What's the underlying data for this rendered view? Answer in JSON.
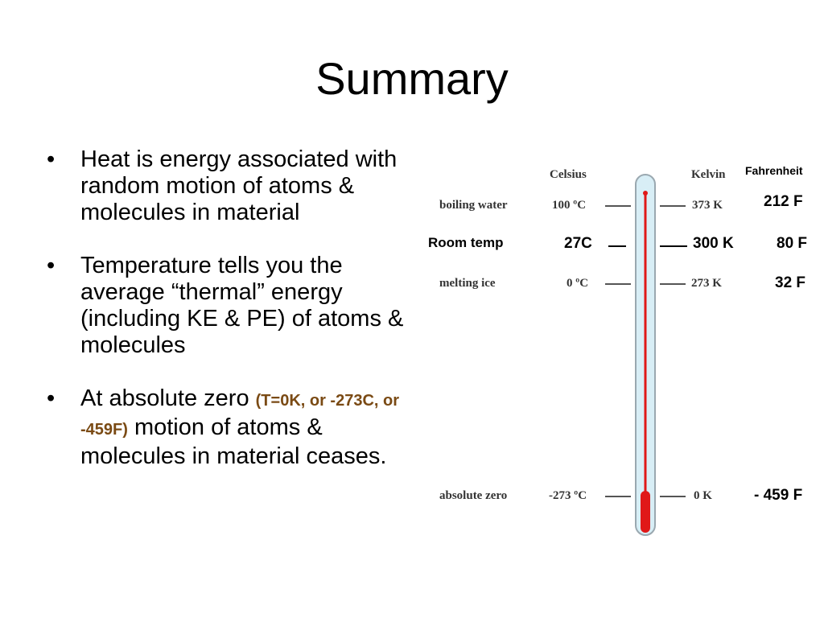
{
  "slide": {
    "title": "Summary",
    "bullets": [
      {
        "marker": "•",
        "text": "Heat is energy associated with random motion of atoms & molecules in material"
      },
      {
        "marker": "•",
        "text": "Temperature tells you the average “thermal” energy (including KE & PE) of atoms & molecules"
      },
      {
        "marker": "•",
        "pre": "At absolute zero ",
        "highlight": "(T=0K, or -273C, or -459F)",
        "post": " motion of atoms & molecules in material ceases."
      }
    ]
  },
  "thermometer": {
    "headers": {
      "celsius": "Celsius",
      "kelvin": "Kelvin",
      "fahrenheit": "Fahrenheit"
    },
    "rows": {
      "boiling": {
        "label": "boiling water",
        "celsius": "100 ºC",
        "kelvin": "373 K",
        "fahrenheit": "212 F"
      },
      "room": {
        "label": "Room temp",
        "celsius": "27C",
        "kelvin": "300 K",
        "fahrenheit": "80 F"
      },
      "melting": {
        "label": "melting ice",
        "celsius": "0 ºC",
        "kelvin": "273 K",
        "fahrenheit": "32 F"
      },
      "zero": {
        "label": "absolute zero",
        "celsius": "-273 ºC",
        "kelvin": "0 K",
        "fahrenheit": "- 459 F"
      }
    },
    "colors": {
      "mercury": "#e01818",
      "tube": "#d8eef6",
      "tube_edge": "#9aa8b0"
    }
  }
}
